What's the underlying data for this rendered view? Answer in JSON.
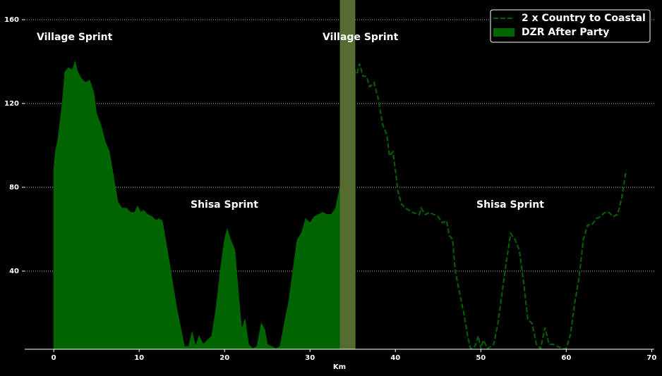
{
  "chart_data": {
    "type": "area",
    "xlabel": "Km",
    "xlim": [
      -3.4,
      70.3
    ],
    "ylim": [
      2.7,
      169.4
    ],
    "xticks": [
      0,
      10,
      20,
      30,
      40,
      50,
      60,
      70
    ],
    "yticks": [
      40,
      80,
      120,
      160
    ],
    "grid": true,
    "legend_loc": "upper right",
    "annotations": [
      "Village Sprint",
      "Shisa Sprint",
      "Village Sprint",
      "Shisa Sprint"
    ],
    "span": {
      "x": [
        33.5,
        35.3
      ],
      "color": "#556b2f"
    },
    "series": [
      {
        "name": "2 x Country to Coastal",
        "color": "#006400",
        "linestyle": "dashed",
        "x": [
          35,
          35.5,
          35.8,
          36.2,
          36.6,
          37,
          37.5,
          38,
          38.5,
          39,
          39.3,
          39.7,
          40,
          40.3,
          40.7,
          41.2,
          42,
          42.8,
          43,
          43.5,
          44,
          44.5,
          45,
          45.5,
          46,
          46.3,
          46.7,
          47,
          47.5,
          48,
          48.5,
          48.8,
          49.3,
          49.7,
          50,
          50.3,
          50.8,
          51.5,
          52,
          52.5,
          53,
          53.5,
          54,
          54.5,
          55,
          55.5,
          56,
          56.5,
          57,
          57.5,
          58,
          58.5,
          59,
          59.5,
          60,
          60.5,
          61,
          61.5,
          62,
          62.5,
          63,
          63.5,
          64,
          64.5,
          65,
          65.5,
          66,
          66.5,
          67
        ],
        "values": [
          136,
          134,
          139,
          133,
          133,
          128,
          130,
          122,
          110,
          105,
          95,
          97,
          88,
          78,
          72,
          70,
          68,
          67,
          70,
          67,
          68,
          67,
          66,
          63,
          64,
          57,
          55,
          40,
          30,
          20,
          8,
          3,
          4,
          9,
          3,
          7,
          3,
          5,
          15,
          30,
          45,
          58,
          55,
          50,
          35,
          17,
          15,
          5,
          3,
          13,
          5,
          5,
          4,
          3,
          3,
          10,
          25,
          37,
          55,
          62,
          62,
          65,
          66,
          68,
          68,
          66,
          67,
          75,
          88
        ]
      },
      {
        "name": "DZR After Party",
        "color": "#006400",
        "fill": true,
        "x": [
          0,
          0.2,
          0.5,
          1,
          1.3,
          1.7,
          2.2,
          2.5,
          2.8,
          3.2,
          3.7,
          4.2,
          4.7,
          5,
          5.5,
          6,
          6.5,
          7,
          7.5,
          8,
          8.5,
          9,
          9.5,
          9.8,
          10.2,
          10.5,
          11,
          11.5,
          12,
          12.3,
          12.7,
          13,
          13.5,
          14,
          14.5,
          15,
          15.3,
          15.8,
          16.2,
          16.6,
          17,
          17.5,
          18,
          18.5,
          19,
          19.5,
          20,
          20.3,
          20.7,
          21.2,
          21.6,
          22,
          22.4,
          22.8,
          23.3,
          23.8,
          24.3,
          24.7,
          25,
          25.5,
          26,
          26.5,
          27,
          27.5,
          28,
          28.5,
          29,
          29.5,
          30,
          30.5,
          31,
          31.5,
          32,
          32.5,
          33,
          33.5,
          34,
          34.5,
          35,
          35.3
        ],
        "values": [
          88,
          97,
          103,
          120,
          135,
          137,
          136,
          140,
          135,
          132,
          130,
          131,
          125,
          115,
          110,
          102,
          97,
          85,
          73,
          70,
          70,
          68,
          68,
          71,
          68,
          69,
          67,
          66,
          64,
          65,
          64,
          57,
          45,
          32,
          20,
          10,
          4,
          4,
          11,
          4,
          9,
          5,
          7,
          9,
          22,
          40,
          55,
          60,
          55,
          50,
          30,
          12,
          17,
          5,
          3,
          4,
          15,
          12,
          5,
          4,
          3,
          4,
          15,
          25,
          40,
          55,
          58,
          65,
          63,
          66,
          67,
          68,
          67,
          67,
          70,
          80,
          105,
          118,
          135,
          136
        ]
      }
    ]
  }
}
